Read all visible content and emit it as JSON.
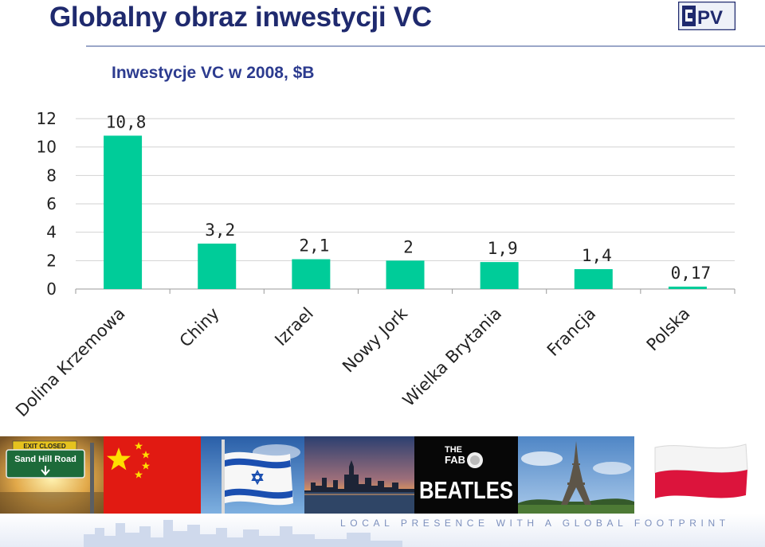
{
  "slide": {
    "title": "Globalny obraz inwestycji VC",
    "tagline": "LOCAL PRESENCE WITH A GLOBAL FOOTPRINT"
  },
  "logo": {
    "text": "PV"
  },
  "photos": {
    "sign_top": "EXIT CLOSED",
    "sign_main": "Sand Hill Road",
    "beatles_the": "THE",
    "beatles_fab": "FAB",
    "beatles_name": "BEATLES"
  },
  "colors": {
    "bar": "#00cc99",
    "title": "#1f2a6e",
    "chart_title": "#2c3b8f"
  },
  "chart_data": {
    "type": "bar",
    "title": "Inwestycje VC w 2008, $B",
    "categories": [
      "Dolina Krzemowa",
      "Chiny",
      "Izrael",
      "Nowy Jork",
      "Wielka Brytania",
      "Francja",
      "Polska"
    ],
    "values": [
      10.8,
      3.2,
      2.1,
      2,
      1.9,
      1.4,
      0.17
    ],
    "data_labels": [
      "10,8",
      "3,2",
      "2,1",
      "2",
      "1,9",
      "1,4",
      "0,17"
    ],
    "yticks": [
      "0",
      "2",
      "4",
      "6",
      "8",
      "10",
      "12"
    ],
    "ylim": [
      0,
      12
    ],
    "grid": true,
    "legend": "none"
  }
}
